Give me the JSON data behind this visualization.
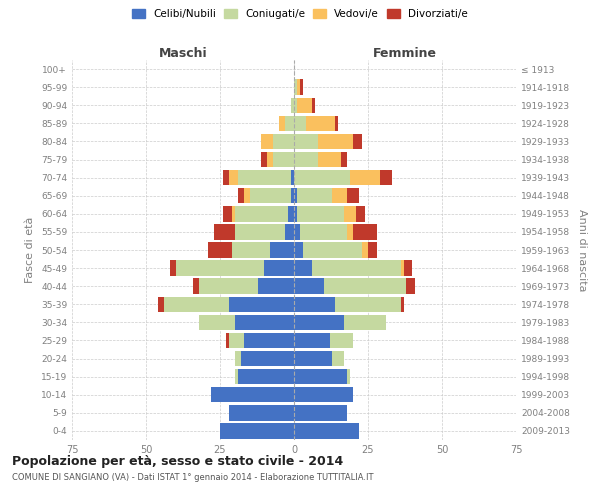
{
  "age_groups": [
    "0-4",
    "5-9",
    "10-14",
    "15-19",
    "20-24",
    "25-29",
    "30-34",
    "35-39",
    "40-44",
    "45-49",
    "50-54",
    "55-59",
    "60-64",
    "65-69",
    "70-74",
    "75-79",
    "80-84",
    "85-89",
    "90-94",
    "95-99",
    "100+"
  ],
  "birth_years": [
    "2009-2013",
    "2004-2008",
    "1999-2003",
    "1994-1998",
    "1989-1993",
    "1984-1988",
    "1979-1983",
    "1974-1978",
    "1969-1973",
    "1964-1968",
    "1959-1963",
    "1954-1958",
    "1949-1953",
    "1944-1948",
    "1939-1943",
    "1934-1938",
    "1929-1933",
    "1924-1928",
    "1919-1923",
    "1914-1918",
    "≤ 1913"
  ],
  "males": {
    "celibi": [
      25,
      22,
      28,
      19,
      18,
      17,
      20,
      22,
      12,
      10,
      8,
      3,
      2,
      1,
      1,
      0,
      0,
      0,
      0,
      0,
      0
    ],
    "coniugati": [
      0,
      0,
      0,
      1,
      2,
      5,
      12,
      22,
      20,
      30,
      13,
      17,
      18,
      14,
      18,
      7,
      7,
      3,
      1,
      0,
      0
    ],
    "vedovi": [
      0,
      0,
      0,
      0,
      0,
      0,
      0,
      0,
      0,
      0,
      0,
      0,
      1,
      2,
      3,
      2,
      4,
      2,
      0,
      0,
      0
    ],
    "divorziati": [
      0,
      0,
      0,
      0,
      0,
      1,
      0,
      2,
      2,
      2,
      8,
      7,
      3,
      2,
      2,
      2,
      0,
      0,
      0,
      0,
      0
    ]
  },
  "females": {
    "nubili": [
      22,
      18,
      20,
      18,
      13,
      12,
      17,
      14,
      10,
      6,
      3,
      2,
      1,
      1,
      0,
      0,
      0,
      0,
      0,
      0,
      0
    ],
    "coniugate": [
      0,
      0,
      0,
      1,
      4,
      8,
      14,
      22,
      28,
      30,
      20,
      16,
      16,
      12,
      19,
      8,
      8,
      4,
      1,
      1,
      0
    ],
    "vedove": [
      0,
      0,
      0,
      0,
      0,
      0,
      0,
      0,
      0,
      1,
      2,
      2,
      4,
      5,
      10,
      8,
      12,
      10,
      5,
      1,
      0
    ],
    "divorziate": [
      0,
      0,
      0,
      0,
      0,
      0,
      0,
      1,
      3,
      3,
      3,
      8,
      3,
      4,
      4,
      2,
      3,
      1,
      1,
      1,
      0
    ]
  },
  "colors": {
    "celibi": "#4472C4",
    "coniugati": "#C5D9A0",
    "vedovi": "#FAC05E",
    "divorziati": "#C0392B"
  },
  "xlim": 75,
  "title": "Popolazione per età, sesso e stato civile - 2014",
  "subtitle": "COMUNE DI SANGIANO (VA) - Dati ISTAT 1° gennaio 2014 - Elaborazione TUTTITALIA.IT",
  "xlabel_left": "Maschi",
  "xlabel_right": "Femmine",
  "ylabel_left": "Fasce di età",
  "ylabel_right": "Anni di nascita",
  "legend_labels": [
    "Celibi/Nubili",
    "Coniugati/e",
    "Vedovi/e",
    "Divorziati/e"
  ],
  "bg_color": "#FFFFFF",
  "grid_color": "#CCCCCC",
  "tick_label_color": "#808080"
}
